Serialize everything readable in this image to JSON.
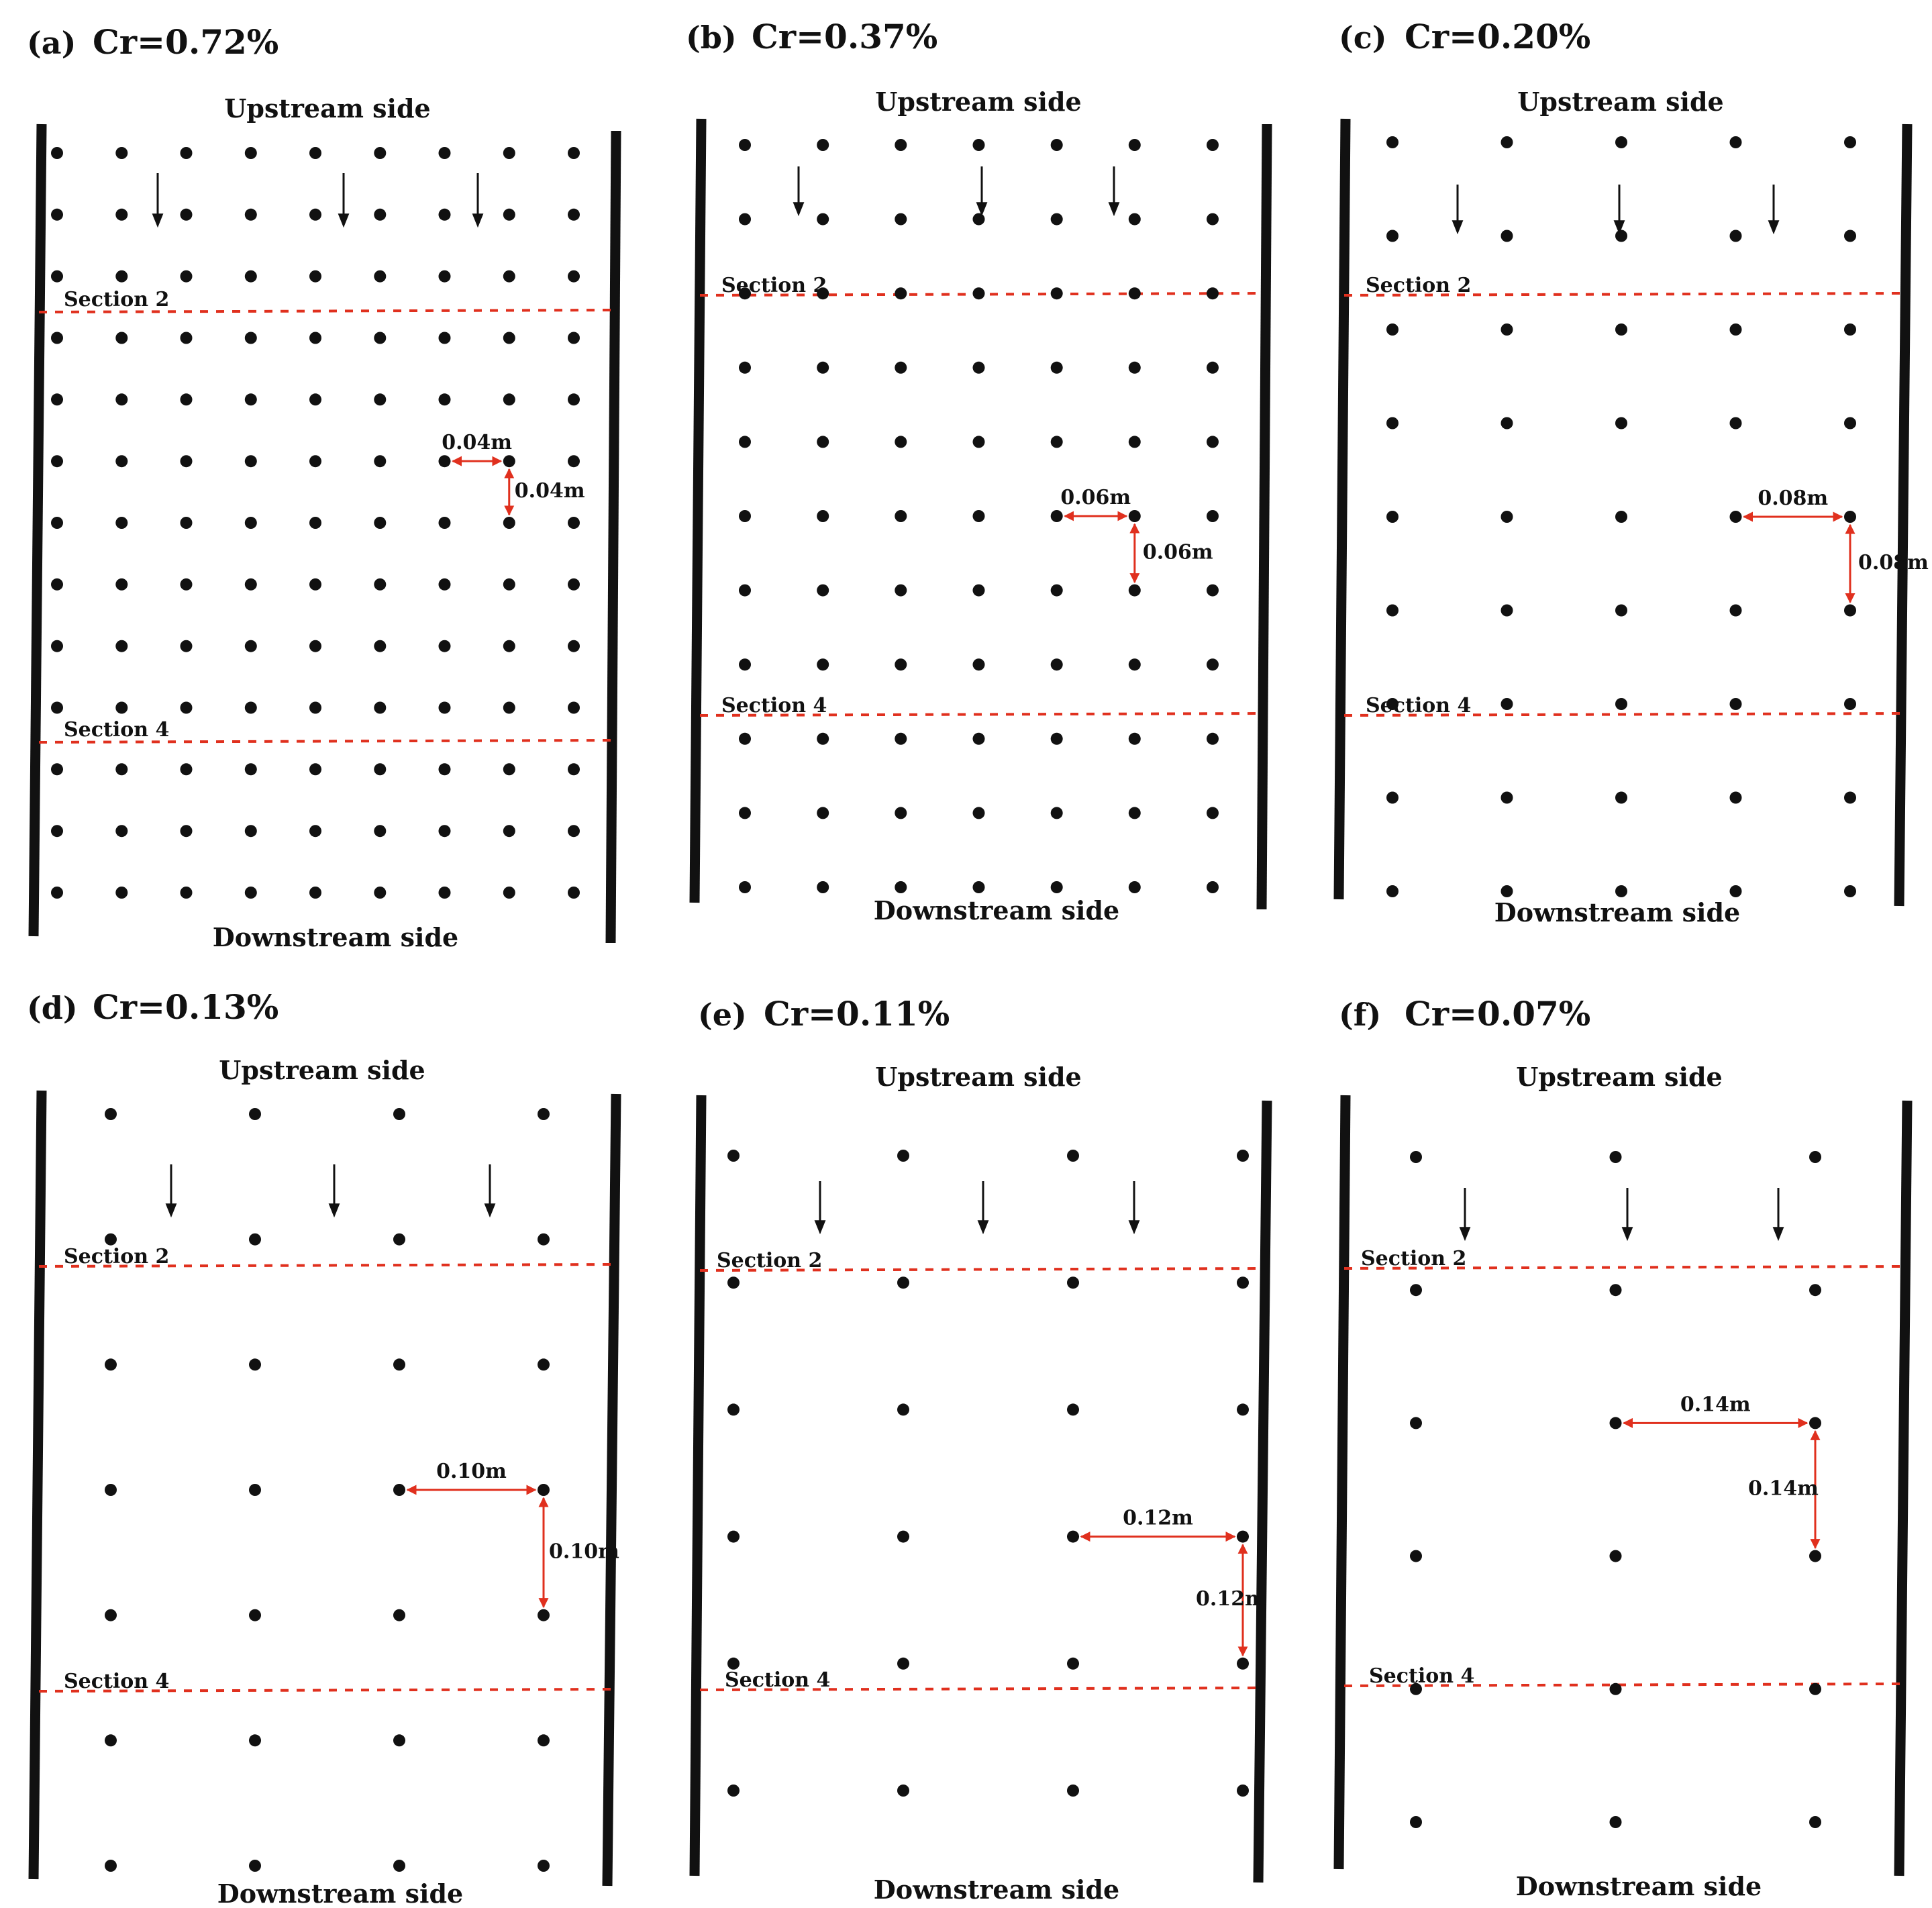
{
  "colors": {
    "ink": "#111111",
    "accent": "#e0301e",
    "background": "#ffffff"
  },
  "panels": [
    {
      "id": "a",
      "label": "(a)",
      "title": "Cr=0.72%",
      "upstream": "Upstream side",
      "downstream": "Downstream side",
      "section_upper": "Section 2",
      "section_lower": "Section 4",
      "h_spacing": "0.04m",
      "v_spacing": "0.04m",
      "cols": 9,
      "rows": 13
    },
    {
      "id": "b",
      "label": "(b)",
      "title": "Cr=0.37%",
      "upstream": "Upstream side",
      "downstream": "Downstream side",
      "section_upper": "Section 2",
      "section_lower": "Section 4",
      "h_spacing": "0.06m",
      "v_spacing": "0.06m",
      "cols": 7,
      "rows": 11
    },
    {
      "id": "c",
      "label": "(c)",
      "title": "Cr=0.20%",
      "upstream": "Upstream side",
      "downstream": "Downstream side",
      "section_upper": "Section 2",
      "section_lower": "Section 4",
      "h_spacing": "0.08m",
      "v_spacing": "0.08m",
      "cols": 5,
      "rows": 9
    },
    {
      "id": "d",
      "label": "(d)",
      "title": "Cr=0.13%",
      "upstream": "Upstream side",
      "downstream": "Downstream side",
      "section_upper": "Section 2",
      "section_lower": "Section 4",
      "h_spacing": "0.10m",
      "v_spacing": "0.10m",
      "cols": 4,
      "rows": 7
    },
    {
      "id": "e",
      "label": "(e)",
      "title": "Cr=0.11%",
      "upstream": "Upstream side",
      "downstream": "Downstream side",
      "section_upper": "Section 2",
      "section_lower": "Section 4",
      "h_spacing": "0.12m",
      "v_spacing": "0.12m",
      "cols": 4,
      "rows": 6
    },
    {
      "id": "f",
      "label": "(f)",
      "title": "Cr=0.07%",
      "upstream": "Upstream side",
      "downstream": "Downstream side",
      "section_upper": "Section 2",
      "section_lower": "Section 4",
      "h_spacing": "0.14m",
      "v_spacing": "0.14m",
      "cols": 3,
      "rows": 6
    }
  ]
}
